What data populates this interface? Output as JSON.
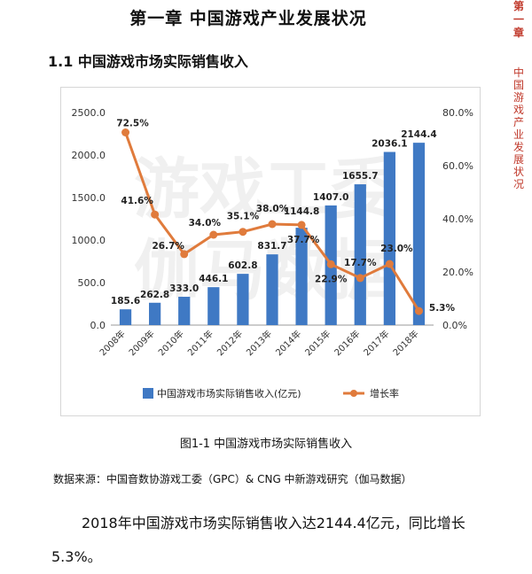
{
  "page": {
    "chapter_title": "第一章  中国游戏产业发展状况",
    "side_chapter": "第一章",
    "side_text": "中国游戏产业发展状况",
    "section_title": "1.1  中国游戏市场实际销售收入",
    "figure_caption": "图1-1  中国游戏市场实际销售收入",
    "source": "数据来源：中国音数协游戏工委（GPC）& CNG 中新游戏研究（伽马数据）",
    "summary": "2018年中国游戏市场实际销售收入达2144.4亿元，同比增长5.3%。",
    "watermark_line1": "游戏工委",
    "watermark_line2": "伽马数据"
  },
  "chart_data": {
    "type": "bar",
    "categories": [
      "2008年",
      "2009年",
      "2010年",
      "2011年",
      "2012年",
      "2013年",
      "2014年",
      "2015年",
      "2016年",
      "2017年",
      "2018年"
    ],
    "series": [
      {
        "name": "中国游戏市场实际销售收入(亿元)",
        "type": "bar",
        "axis": "left",
        "color": "#3f79c4",
        "values": [
          185.6,
          262.8,
          333.0,
          446.1,
          602.8,
          831.7,
          1144.8,
          1407.0,
          1655.7,
          2036.1,
          2144.4
        ],
        "labels": [
          "185.6",
          "262.8",
          "333.0",
          "446.1",
          "602.8",
          "831.7",
          "1144.8",
          "1407.0",
          "1655.7",
          "2036.1",
          "2144.4"
        ]
      },
      {
        "name": "增长率",
        "type": "line",
        "axis": "right",
        "color": "#e07b3c",
        "values": [
          72.5,
          41.6,
          26.7,
          34.0,
          35.1,
          38.0,
          37.7,
          22.9,
          17.7,
          23.0,
          5.3
        ],
        "labels": [
          "72.5%",
          "41.6%",
          "26.7%",
          "34.0%",
          "35.1%",
          "38.0%",
          "37.7%",
          "22.9%",
          "17.7%",
          "23.0%",
          "5.3%"
        ]
      }
    ],
    "y_left": {
      "min": 0,
      "max": 2500,
      "ticks": [
        "0.0",
        "500.0",
        "1000.0",
        "1500.0",
        "2000.0",
        "2500.0"
      ]
    },
    "y_right": {
      "min": 0,
      "max": 80,
      "ticks": [
        "0.0%",
        "20.0%",
        "40.0%",
        "60.0%",
        "80.0%"
      ]
    },
    "grid": false,
    "legend_position": "bottom"
  }
}
